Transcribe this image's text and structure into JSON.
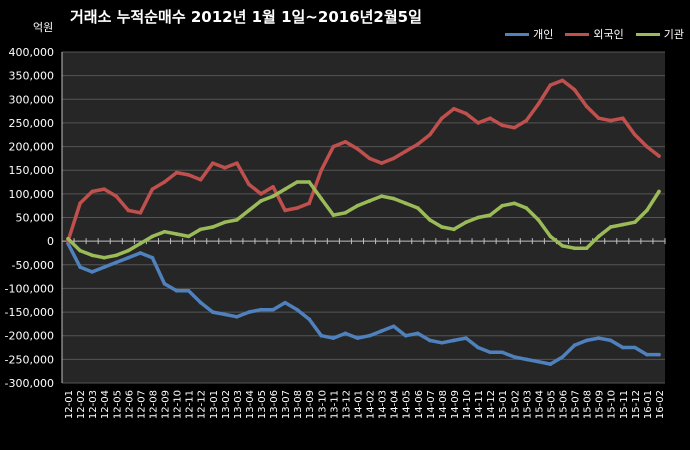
{
  "header": {
    "title": "거래소 누적순매수 2012년 1월 1일~2016년2월5일",
    "unit": "억원"
  },
  "colors": {
    "background": "#000000",
    "plot_background": "#262626",
    "grid": "#555555",
    "axis": "#bfbfbf",
    "text": "#ffffff"
  },
  "chart_data": {
    "type": "line",
    "title": "거래소 누적순매수 2012년 1월 1일~2016년2월5일",
    "ylabel": "억원",
    "ylim": [
      -300000,
      400000
    ],
    "yticks": [
      400000,
      350000,
      300000,
      250000,
      200000,
      150000,
      100000,
      50000,
      0,
      -50000,
      -100000,
      -150000,
      -200000,
      -250000,
      -300000
    ],
    "ytick_labels": [
      "400,000",
      "350,000",
      "300,000",
      "250,000",
      "200,000",
      "150,000",
      "100,000",
      "50,000",
      "0",
      "-50,000",
      "-100,000",
      "-150,000",
      "-200,000",
      "-250,000",
      "-300,000"
    ],
    "categories": [
      "12-01",
      "12-02",
      "12-03",
      "12-04",
      "12-05",
      "12-06",
      "12-07",
      "12-08",
      "12-09",
      "12-10",
      "12-11",
      "12-12",
      "13-01",
      "13-02",
      "13-03",
      "13-04",
      "13-05",
      "13-06",
      "13-07",
      "13-08",
      "13-09",
      "13-10",
      "13-11",
      "13-12",
      "14-01",
      "14-02",
      "14-03",
      "14-04",
      "14-05",
      "14-06",
      "14-07",
      "14-08",
      "14-09",
      "14-10",
      "14-11",
      "14-12",
      "15-01",
      "15-02",
      "15-03",
      "15-04",
      "15-05",
      "15-06",
      "15-07",
      "15-08",
      "15-09",
      "15-10",
      "15-11",
      "15-12",
      "16-01",
      "16-02"
    ],
    "grid": true,
    "legend_position": "top-right",
    "series": [
      {
        "name": "개인",
        "color": "#4f81bd",
        "values": [
          -5000,
          -55000,
          -65000,
          -55000,
          -45000,
          -35000,
          -25000,
          -35000,
          -90000,
          -105000,
          -105000,
          -130000,
          -150000,
          -155000,
          -160000,
          -150000,
          -145000,
          -145000,
          -130000,
          -145000,
          -165000,
          -200000,
          -205000,
          -195000,
          -205000,
          -200000,
          -190000,
          -180000,
          -200000,
          -195000,
          -210000,
          -215000,
          -210000,
          -205000,
          -225000,
          -235000,
          -235000,
          -245000,
          -250000,
          -255000,
          -260000,
          -245000,
          -220000,
          -210000,
          -205000,
          -210000,
          -225000,
          -225000,
          -240000,
          -240000
        ]
      },
      {
        "name": "외국인",
        "color": "#c0504d",
        "values": [
          0,
          80000,
          105000,
          110000,
          95000,
          65000,
          60000,
          110000,
          125000,
          145000,
          140000,
          130000,
          165000,
          155000,
          165000,
          120000,
          100000,
          115000,
          65000,
          70000,
          80000,
          150000,
          200000,
          210000,
          195000,
          175000,
          165000,
          175000,
          190000,
          205000,
          225000,
          260000,
          280000,
          270000,
          250000,
          260000,
          245000,
          240000,
          255000,
          290000,
          330000,
          340000,
          320000,
          285000,
          260000,
          255000,
          260000,
          225000,
          200000,
          180000
        ]
      },
      {
        "name": "기관",
        "color": "#9bbb59",
        "values": [
          5000,
          -20000,
          -30000,
          -35000,
          -30000,
          -20000,
          -5000,
          10000,
          20000,
          15000,
          10000,
          25000,
          30000,
          40000,
          45000,
          65000,
          85000,
          95000,
          110000,
          125000,
          125000,
          90000,
          55000,
          60000,
          75000,
          85000,
          95000,
          90000,
          80000,
          70000,
          45000,
          30000,
          25000,
          40000,
          50000,
          55000,
          75000,
          80000,
          70000,
          45000,
          10000,
          -10000,
          -15000,
          -15000,
          10000,
          30000,
          35000,
          40000,
          65000,
          105000
        ]
      }
    ]
  }
}
